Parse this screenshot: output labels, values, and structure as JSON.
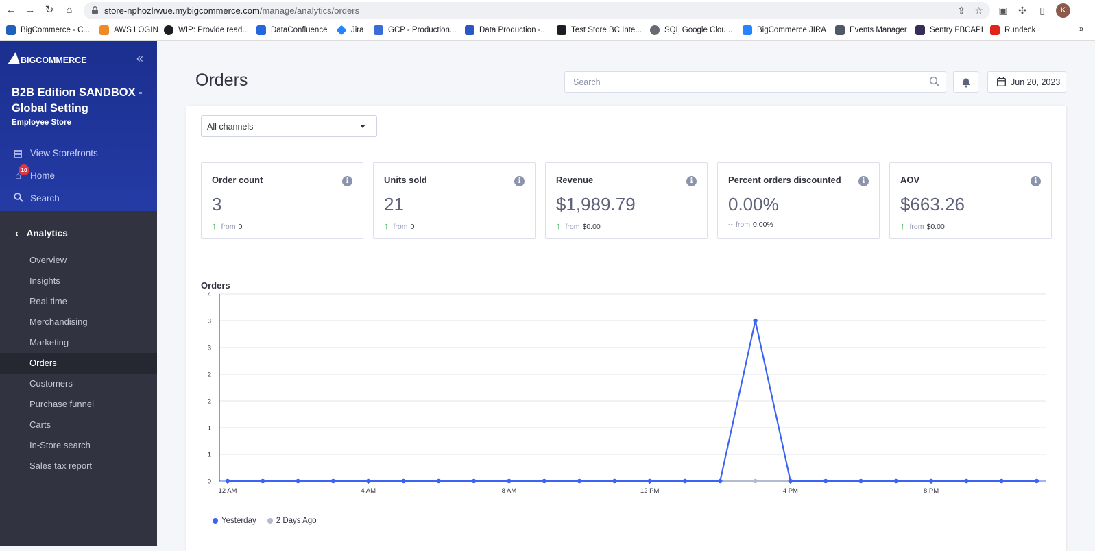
{
  "browser": {
    "url_host": "store-nphozlrwue.mybigcommerce.com",
    "url_path": "/manage/analytics/orders",
    "profile_initial": "K",
    "bookmarks": [
      {
        "label": "BigCommerce - C...",
        "color": "#1f61ba"
      },
      {
        "label": "AWS LOGIN",
        "color": "#f08a24"
      },
      {
        "label": "WIP: Provide read...",
        "color": "#1b1f23"
      },
      {
        "label": "DataConfluence",
        "color": "#2467e0"
      },
      {
        "label": "Jira",
        "color": "#2684ff"
      },
      {
        "label": "GCP - Production...",
        "color": "#3b6bd6"
      },
      {
        "label": "Data Production -...",
        "color": "#2a57c4"
      },
      {
        "label": "Test Store BC Inte...",
        "color": "#1b1f23"
      },
      {
        "label": "SQL  Google Clou...",
        "color": "#666a72"
      },
      {
        "label": "BigCommerce JIRA",
        "color": "#2684ff"
      },
      {
        "label": "Events Manager",
        "color": "#505868"
      },
      {
        "label": "Sentry FBCAPI",
        "color": "#362d59"
      },
      {
        "label": "Rundeck",
        "color": "#e2231a"
      }
    ],
    "more_bookmarks": "»"
  },
  "sidebar": {
    "logo": "BIGCOMMERCE",
    "store_name": "B2B Edition SANDBOX - Global Setting",
    "store_sub": "Employee Store",
    "top_links": [
      {
        "label": "View Storefronts",
        "icon": "storefront-icon"
      },
      {
        "label": "Home",
        "icon": "home-icon",
        "badge": "10"
      },
      {
        "label": "Search",
        "icon": "search-icon"
      }
    ],
    "section": "Analytics",
    "items": [
      {
        "label": "Overview"
      },
      {
        "label": "Insights"
      },
      {
        "label": "Real time"
      },
      {
        "label": "Merchandising"
      },
      {
        "label": "Marketing"
      },
      {
        "label": "Orders",
        "active": true
      },
      {
        "label": "Customers"
      },
      {
        "label": "Purchase funnel"
      },
      {
        "label": "Carts"
      },
      {
        "label": "In-Store search"
      },
      {
        "label": "Sales tax report"
      }
    ]
  },
  "header": {
    "title": "Orders",
    "search_placeholder": "Search",
    "date": "Jun 20, 2023"
  },
  "filters": {
    "channel": "All channels"
  },
  "metrics": [
    {
      "title": "Order count",
      "value": "3",
      "trend": "up",
      "from_label": "from",
      "from_value": "0"
    },
    {
      "title": "Units sold",
      "value": "21",
      "trend": "up",
      "from_label": "from",
      "from_value": "0"
    },
    {
      "title": "Revenue",
      "value": "$1,989.79",
      "trend": "up",
      "from_label": "from",
      "from_value": "$0.00"
    },
    {
      "title": "Percent orders discounted",
      "value": "0.00%",
      "trend": "flat",
      "from_label": "from",
      "from_value": "0.00%"
    },
    {
      "title": "AOV",
      "value": "$663.26",
      "trend": "up",
      "from_label": "from",
      "from_value": "$0.00"
    }
  ],
  "chart_data": {
    "type": "line",
    "title": "Orders",
    "xlabel": "",
    "ylabel": "",
    "y_tick_labels": [
      "0",
      "1",
      "1",
      "2",
      "2",
      "3",
      "3",
      "4"
    ],
    "ylim": [
      0,
      3.5
    ],
    "x_tick_labels": [
      "12 AM",
      "4 AM",
      "8 AM",
      "12 PM",
      "4 PM",
      "8 PM"
    ],
    "x": [
      0,
      1,
      2,
      3,
      4,
      5,
      6,
      7,
      8,
      9,
      10,
      11,
      12,
      13,
      14,
      15,
      16,
      17,
      18,
      19,
      20,
      21,
      22,
      23
    ],
    "series": [
      {
        "name": "Yesterday",
        "color": "#3c64f4",
        "values": [
          0,
          0,
          0,
          0,
          0,
          0,
          0,
          0,
          0,
          0,
          0,
          0,
          0,
          0,
          0,
          3,
          0,
          0,
          0,
          0,
          0,
          0,
          0,
          0
        ]
      },
      {
        "name": "2 Days Ago",
        "color": "#b4bacf",
        "values": [
          0,
          0,
          0,
          0,
          0,
          0,
          0,
          0,
          0,
          0,
          0,
          0,
          0,
          0,
          0,
          0,
          0,
          0,
          0,
          0,
          0,
          0,
          0,
          0
        ]
      }
    ],
    "grid": true,
    "legend": "bottom-left"
  }
}
